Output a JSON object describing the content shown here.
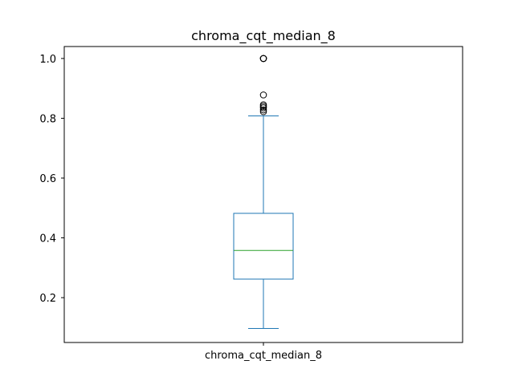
{
  "chart_data": {
    "type": "box",
    "title": "chroma_cqt_median_8",
    "categories": [
      "chroma_cqt_median_8"
    ],
    "ylim": [
      0.05,
      1.04
    ],
    "yticks": [
      0.2,
      0.4,
      0.6,
      0.8,
      1.0
    ],
    "ytick_labels": [
      "0.2",
      "0.4",
      "0.6",
      "0.8",
      "1.0"
    ],
    "grid": false,
    "box": {
      "whisker_low": 0.097,
      "q1": 0.262,
      "median": 0.358,
      "q3": 0.482,
      "whisker_high": 0.808
    },
    "outliers": [
      0.822,
      0.828,
      0.835,
      0.84,
      0.845,
      0.878,
      1.0,
      1.0,
      1.0
    ],
    "colors": {
      "box": "#1f77b4",
      "median": "#2ca02c",
      "outlier": "#000000"
    }
  }
}
